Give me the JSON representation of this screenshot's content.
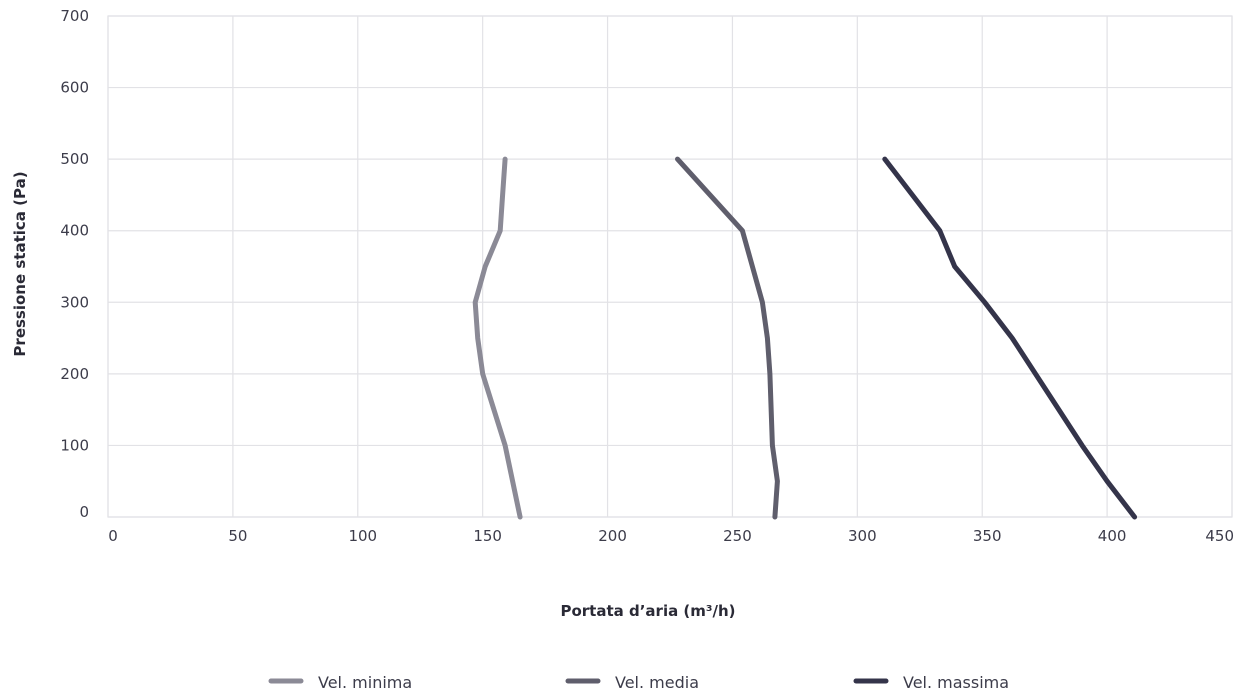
{
  "chart_data": {
    "type": "line",
    "xlabel": "Portata d’aria (m³/h)",
    "ylabel": "Pressione statica (Pa)",
    "xlim": [
      0,
      450
    ],
    "ylim": [
      0,
      700
    ],
    "x_ticks": [
      0,
      50,
      100,
      150,
      200,
      250,
      300,
      350,
      400,
      450
    ],
    "y_ticks": [
      0,
      100,
      200,
      300,
      400,
      500,
      600,
      700
    ],
    "grid": true,
    "legend_position": "bottom",
    "series": [
      {
        "name": "Vel. minima",
        "color": "#8b8a96",
        "points": [
          [
            165,
            0
          ],
          [
            162,
            50
          ],
          [
            159,
            100
          ],
          [
            150,
            200
          ],
          [
            148,
            250
          ],
          [
            147,
            300
          ],
          [
            151,
            350
          ],
          [
            157,
            400
          ],
          [
            158,
            450
          ],
          [
            159,
            500
          ]
        ]
      },
      {
        "name": "Vel. media",
        "color": "#5f5e6c",
        "points": [
          [
            267,
            0
          ],
          [
            268,
            50
          ],
          [
            266,
            100
          ],
          [
            265,
            200
          ],
          [
            264,
            250
          ],
          [
            262,
            300
          ],
          [
            258,
            350
          ],
          [
            254,
            400
          ],
          [
            241,
            450
          ],
          [
            228,
            500
          ]
        ]
      },
      {
        "name": "Vel. massima",
        "color": "#34344a",
        "points": [
          [
            411,
            0
          ],
          [
            400,
            50
          ],
          [
            390,
            100
          ],
          [
            362,
            250
          ],
          [
            351,
            300
          ],
          [
            339,
            350
          ],
          [
            333,
            400
          ],
          [
            322,
            450
          ],
          [
            311,
            500
          ]
        ]
      }
    ]
  }
}
